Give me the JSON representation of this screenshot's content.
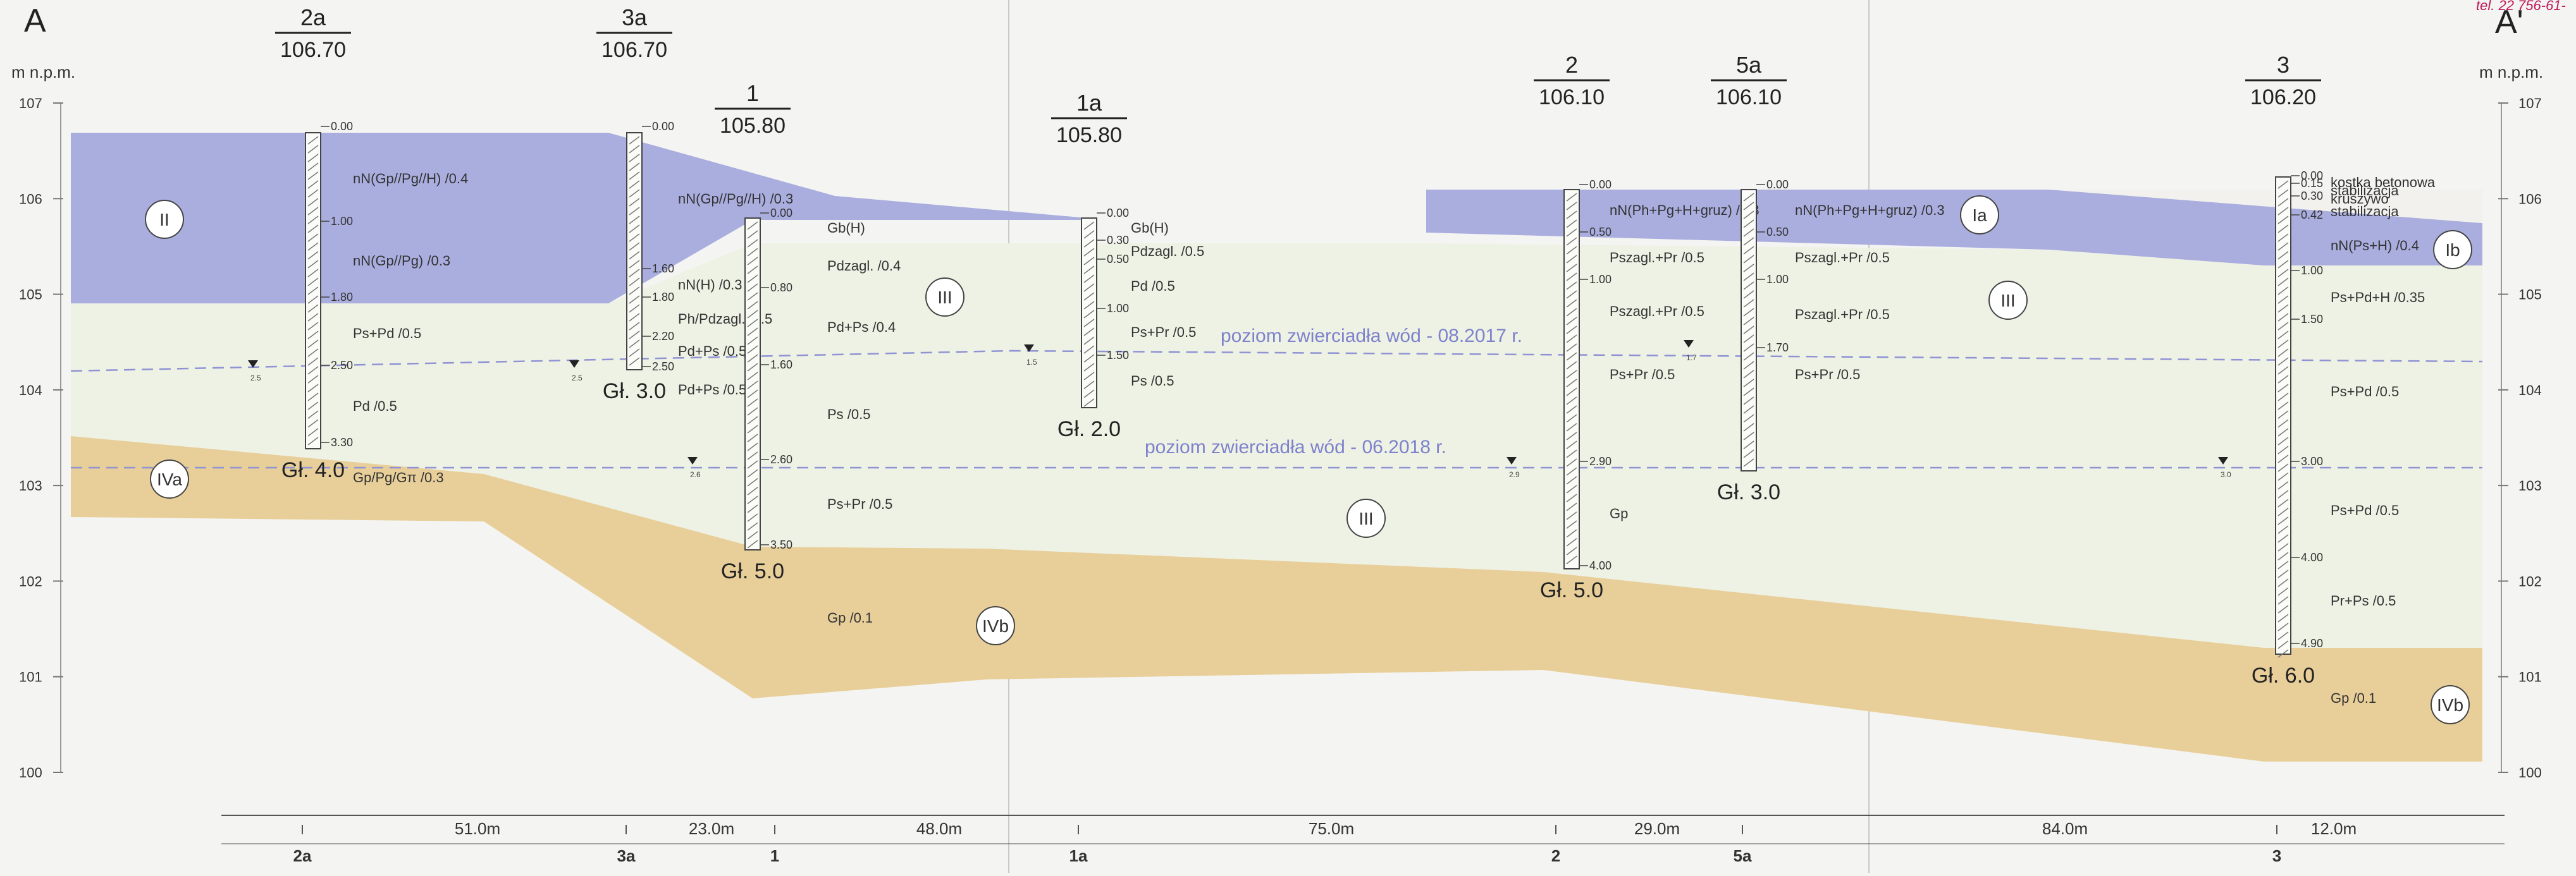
{
  "corner_left": "A",
  "corner_right": "A'",
  "phone": "tel. 22 756-61-",
  "axis_unit": "m n.p.m.",
  "elevations": [
    "107",
    "106",
    "105",
    "104",
    "103",
    "102",
    "101",
    "100"
  ],
  "water_labels": [
    "poziom zwierciadła wód - 08.2017 r.",
    "poziom zwierciadła wód - 06.2018 r."
  ],
  "zones": [
    "II",
    "IVa",
    "III",
    "IVb",
    "III",
    "Ia",
    "III",
    "Ib",
    "IVb"
  ],
  "boreholes": [
    {
      "id": "2a",
      "elev": "106.70",
      "depth": "Gł. 4.0",
      "water": "2.5",
      "ticks": [
        "0.00",
        "1.00",
        "1.80",
        "2.50",
        "3.30"
      ],
      "layers": [
        "nN(Gp//Pg//H) /0.4",
        "nN(Gp//Pg) /0.3",
        "Ps+Pd /0.5",
        "Pd /0.5",
        "Gp/Pg/Gπ /0.3"
      ]
    },
    {
      "id": "3a",
      "elev": "106.70",
      "depth": "Gł. 3.0",
      "water": "2.5",
      "ticks": [
        "0.00",
        "1.60",
        "1.80",
        "2.20",
        "2.50"
      ],
      "layers": [
        "nN(Gp//Pg//H) /0.3",
        "nN(H) /0.3",
        "Ph/Pdzagl. /0.5",
        "Pd+Ps /0.5",
        "Pd+Ps /0.5"
      ]
    },
    {
      "id": "1",
      "elev": "105.80",
      "depth": "Gł. 5.0",
      "water": "2.6",
      "ticks": [
        "0.00",
        "0.80",
        "1.60",
        "2.60",
        "3.50"
      ],
      "layers": [
        "Gb(H)",
        "Pdzagl. /0.4",
        "Pd+Ps /0.4",
        "Ps /0.5",
        "Ps+Pr /0.5",
        "Gp /0.1"
      ]
    },
    {
      "id": "1a",
      "elev": "105.80",
      "depth": "Gł. 2.0",
      "water": "1.5",
      "ticks": [
        "0.00",
        "0.30",
        "0.50",
        "1.00",
        "1.50"
      ],
      "layers": [
        "Gb(H)",
        "Pdzagl. /0.5",
        "Pd /0.5",
        "Ps+Pr /0.5",
        "Ps /0.5"
      ]
    },
    {
      "id": "2",
      "elev": "106.10",
      "depth": "Gł. 5.0",
      "water": "2.9",
      "ticks": [
        "0.00",
        "0.50",
        "1.00",
        "2.90",
        "4.00"
      ],
      "layers": [
        "nN(Ph+Pg+H+gruz) /0.3",
        "Pszagl.+Pr /0.5",
        "Pszagl.+Pr /0.5",
        "Ps+Pr /0.5",
        "Gp"
      ]
    },
    {
      "id": "5a",
      "elev": "106.10",
      "depth": "Gł. 3.0",
      "water": "1.7",
      "ticks": [
        "0.00",
        "0.50",
        "1.00",
        "1.70"
      ],
      "layers": [
        "nN(Ph+Pg+H+gruz) /0.3",
        "Pszagl.+Pr /0.5",
        "Pszagl.+Pr /0.5",
        "Ps+Pr /0.5"
      ]
    },
    {
      "id": "3",
      "elev": "106.20",
      "depth": "Gł. 6.0",
      "water": "3.0",
      "ticks": [
        "0.00",
        "0.15",
        "0.30",
        "0.42",
        "1.00",
        "1.50",
        "3.00",
        "4.00",
        "4.90"
      ],
      "layers": [
        "kostka betonowa",
        "stabilizacja",
        "kruszywo",
        "stabilizacja",
        "nN(Ps+H) /0.4",
        "Ps+Pd+H /0.35",
        "Ps+Pd /0.5",
        "Ps+Pd /0.5",
        "Pr+Ps /0.5",
        "Gp /0.1"
      ]
    }
  ],
  "distances": [
    "51.0m",
    "23.0m",
    "48.0m",
    "75.0m",
    "29.0m",
    "84.0m",
    "12.0m"
  ],
  "bottom_labels": [
    "2a",
    "3a",
    "1",
    "1a",
    "2",
    "5a",
    "3"
  ],
  "colors": {
    "fill_purple": "#aaaedf",
    "fill_green": "#eef2e4",
    "fill_tan": "#e8cf9a",
    "water_line": "#8f93d4",
    "water_text": "#7e82cc",
    "phone": "#c0185a"
  }
}
